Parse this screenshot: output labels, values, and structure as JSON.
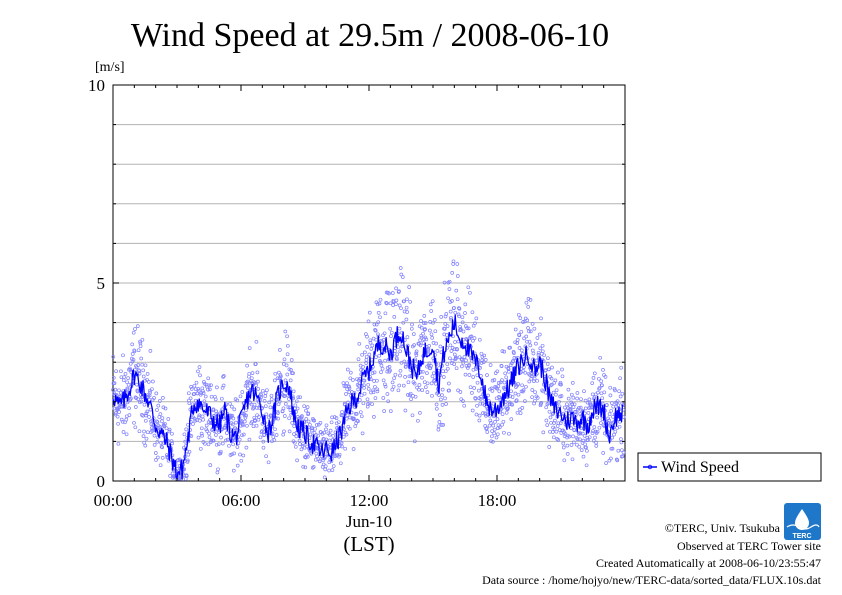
{
  "chart_data": {
    "type": "line",
    "title": "Wind Speed at 29.5m / 2008-06-10",
    "ylabel": "[m/s]",
    "xlabel_date": "Jun-10",
    "xlabel_tz": "(LST)",
    "ylim": [
      0,
      10
    ],
    "xlim_hours": [
      0,
      24
    ],
    "y_ticks": [
      {
        "value": 0,
        "label": "0"
      },
      {
        "value": 5,
        "label": "5"
      },
      {
        "value": 10,
        "label": "10"
      }
    ],
    "x_ticks": [
      {
        "value": 0,
        "label": "00:00"
      },
      {
        "value": 6,
        "label": "06:00"
      },
      {
        "value": 12,
        "label": "12:00"
      },
      {
        "value": 18,
        "label": "18:00"
      }
    ],
    "grid": true,
    "legend_position": "right-bottom",
    "series": [
      {
        "name": "Wind Speed",
        "color": "#0000ff",
        "scatter_color": "#8080ff",
        "x_hours": [
          0.0,
          0.25,
          0.5,
          0.75,
          1.0,
          1.25,
          1.5,
          1.75,
          2.0,
          2.25,
          2.5,
          2.75,
          3.0,
          3.25,
          3.5,
          3.75,
          4.0,
          4.25,
          4.5,
          4.75,
          5.0,
          5.25,
          5.5,
          5.75,
          6.0,
          6.25,
          6.5,
          6.75,
          7.0,
          7.25,
          7.5,
          7.75,
          8.0,
          8.25,
          8.5,
          8.75,
          9.0,
          9.25,
          9.5,
          9.75,
          10.0,
          10.25,
          10.5,
          10.75,
          11.0,
          11.25,
          11.5,
          11.75,
          12.0,
          12.25,
          12.5,
          12.75,
          13.0,
          13.25,
          13.5,
          13.75,
          14.0,
          14.25,
          14.5,
          14.75,
          15.0,
          15.25,
          15.5,
          15.75,
          16.0,
          16.25,
          16.5,
          16.75,
          17.0,
          17.25,
          17.5,
          17.75,
          18.0,
          18.25,
          18.5,
          18.75,
          19.0,
          19.25,
          19.5,
          19.75,
          20.0,
          20.25,
          20.5,
          20.75,
          21.0,
          21.25,
          21.5,
          21.75,
          22.0,
          22.25,
          22.5,
          22.75,
          23.0,
          23.25,
          23.5,
          23.75
        ],
        "values": [
          2.2,
          1.9,
          2.0,
          2.3,
          2.7,
          2.5,
          2.2,
          1.9,
          1.4,
          1.2,
          1.0,
          0.6,
          0.2,
          0.3,
          1.0,
          1.9,
          2.0,
          1.8,
          1.7,
          1.5,
          1.4,
          1.8,
          1.2,
          1.1,
          1.5,
          2.0,
          2.3,
          2.1,
          1.8,
          1.2,
          1.6,
          2.2,
          2.5,
          2.4,
          1.6,
          1.3,
          1.2,
          1.0,
          0.9,
          0.7,
          0.8,
          0.7,
          1.0,
          1.3,
          1.8,
          2.0,
          2.2,
          2.6,
          2.8,
          3.2,
          3.5,
          3.4,
          3.2,
          3.6,
          3.8,
          3.3,
          2.9,
          2.6,
          3.2,
          3.3,
          3.5,
          2.4,
          3.2,
          3.6,
          4.0,
          3.6,
          3.5,
          3.2,
          3.0,
          2.7,
          2.0,
          1.8,
          1.8,
          2.1,
          2.3,
          2.6,
          2.9,
          3.1,
          3.2,
          2.8,
          3.0,
          2.6,
          2.0,
          1.8,
          1.7,
          1.5,
          1.6,
          1.5,
          1.6,
          1.4,
          1.8,
          1.9,
          1.8,
          1.1,
          1.6,
          1.7
        ]
      }
    ]
  },
  "legend": {
    "label": "Wind Speed"
  },
  "footer": {
    "copyright": "©TERC, Univ. Tsukuba",
    "observed": "Observed at TERC Tower site",
    "created": "Created Automatically at 2008-06-10/23:55:47",
    "source": "Data source : /home/hojyo/new/TERC-data/sorted_data/FLUX.10s.dat",
    "logo_text": "TERC",
    "logo_color": "#1f77c9"
  }
}
